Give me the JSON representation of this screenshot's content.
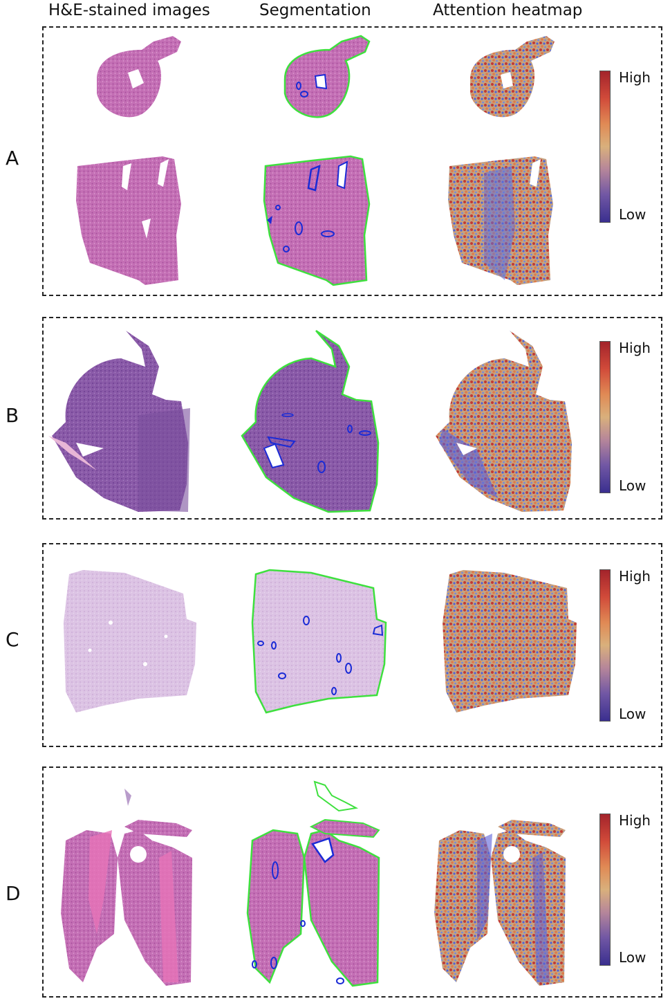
{
  "headers": {
    "he": "H&E-stained images",
    "seg": "Segmentation",
    "heat": "Attention heatmap"
  },
  "panels": [
    {
      "label": "A",
      "high": "High",
      "low": "Low"
    },
    {
      "label": "B",
      "high": "High",
      "low": "Low"
    },
    {
      "label": "C",
      "high": "High",
      "low": "Low"
    },
    {
      "label": "D",
      "high": "High",
      "low": "Low"
    }
  ],
  "colors": {
    "stain_pink": "#c46fb5",
    "stain_purple": "#8a5aa8",
    "stain_light": "#d9bde0",
    "tissue_outline": "#3ee03e",
    "lumen_outline": "#1a2bd6",
    "heat_high": "#a3232b",
    "heat_low": "#3a2f8f"
  }
}
